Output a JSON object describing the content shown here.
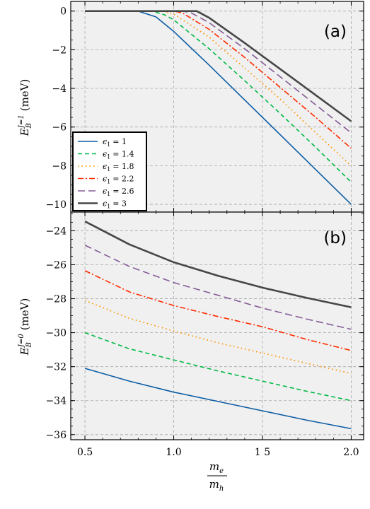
{
  "chart_data": [
    {
      "type": "line",
      "panel_label": "(a)",
      "ylabel": "E_B^{J=1} (meV)",
      "ylabel_parts": {
        "base": "E",
        "sub": "B",
        "sup": "J=1",
        "unit": "(meV)"
      },
      "xlim": [
        0.42,
        2.07
      ],
      "ylim": [
        -10.4,
        0.5
      ],
      "yticks": [
        0,
        -2,
        -4,
        -6,
        -8,
        -10
      ],
      "ytick_labels": [
        "0",
        "−2",
        "−4",
        "−6",
        "−8",
        "−10"
      ],
      "grid": true,
      "legend_position": "lower-left",
      "series": [
        {
          "name": "ϵ1 = 1",
          "color": "#0c5da5",
          "dash": "solid",
          "width": 1.6,
          "x": [
            0.5,
            0.8,
            0.9,
            1.0,
            1.2,
            1.4,
            1.6,
            1.8,
            2.0
          ],
          "y": [
            0,
            0,
            -0.3,
            -1.05,
            -2.8,
            -4.6,
            -6.4,
            -8.2,
            -10.0
          ]
        },
        {
          "name": "ϵ1 = 1.4",
          "color": "#00b945",
          "dash": "6,4",
          "width": 1.6,
          "x": [
            0.5,
            0.88,
            0.95,
            1.0,
            1.2,
            1.4,
            1.6,
            1.8,
            2.0
          ],
          "y": [
            0,
            0,
            -0.2,
            -0.45,
            -1.95,
            -3.6,
            -5.3,
            -7.05,
            -8.85
          ]
        },
        {
          "name": "ϵ1 = 1.8",
          "color": "#ff9500",
          "dash": "1.5,4",
          "width": 1.8,
          "x": [
            0.5,
            0.94,
            1.0,
            1.2,
            1.4,
            1.6,
            1.8,
            2.0
          ],
          "y": [
            0,
            0,
            -0.15,
            -1.35,
            -2.95,
            -4.55,
            -6.3,
            -8.0
          ]
        },
        {
          "name": "ϵ1 = 2.2",
          "color": "#ff2c00",
          "dash": "8,3,2,3",
          "width": 1.6,
          "x": [
            0.5,
            1.0,
            1.05,
            1.2,
            1.4,
            1.6,
            1.8,
            2.0
          ],
          "y": [
            0,
            0,
            -0.1,
            -0.95,
            -2.4,
            -3.95,
            -5.5,
            -7.1
          ]
        },
        {
          "name": "ϵ1 = 2.6",
          "color": "#845b97",
          "dash": "10,5",
          "width": 1.6,
          "x": [
            0.5,
            1.05,
            1.1,
            1.2,
            1.4,
            1.6,
            1.8,
            2.0
          ],
          "y": [
            0,
            0,
            -0.1,
            -0.6,
            -1.95,
            -3.4,
            -4.85,
            -6.3
          ]
        },
        {
          "name": "ϵ1 = 3",
          "color": "#474747",
          "dash": "solid",
          "width": 2.6,
          "x": [
            0.5,
            1.13,
            1.2,
            1.4,
            1.6,
            1.8,
            2.0
          ],
          "y": [
            0,
            0,
            -0.35,
            -1.65,
            -3.0,
            -4.35,
            -5.7
          ]
        }
      ]
    },
    {
      "type": "line",
      "panel_label": "(b)",
      "ylabel": "E_B^{J=0} (meV)",
      "ylabel_parts": {
        "base": "E",
        "sub": "B",
        "sup": "J=0",
        "unit": "(meV)"
      },
      "xlabel": "m_e / m_h",
      "xlabel_parts": {
        "num": "m",
        "num_sub": "e",
        "den": "m",
        "den_sub": "h"
      },
      "xlim": [
        0.42,
        2.07
      ],
      "ylim": [
        -36.3,
        -22.9
      ],
      "yticks": [
        -24,
        -26,
        -28,
        -30,
        -32,
        -34,
        -36
      ],
      "ytick_labels": [
        "−24",
        "−26",
        "−28",
        "−30",
        "−32",
        "−34",
        "−36"
      ],
      "xticks": [
        0.5,
        1.0,
        1.5,
        2.0
      ],
      "xtick_labels": [
        "0.5",
        "1.0",
        "1 5",
        "2.0"
      ],
      "grid": true,
      "series": [
        {
          "name": "ϵ1 = 1",
          "color": "#0c5da5",
          "dash": "solid",
          "width": 1.6,
          "x": [
            0.5,
            0.75,
            1.0,
            1.25,
            1.5,
            1.75,
            2.0
          ],
          "y": [
            -32.1,
            -32.85,
            -33.5,
            -34.05,
            -34.6,
            -35.15,
            -35.65
          ]
        },
        {
          "name": "ϵ1 = 1.4",
          "color": "#00b945",
          "dash": "6,4",
          "width": 1.6,
          "x": [
            0.5,
            0.75,
            1.0,
            1.25,
            1.5,
            1.75,
            2.0
          ],
          "y": [
            -30.0,
            -30.95,
            -31.6,
            -32.25,
            -32.85,
            -33.45,
            -34.0
          ]
        },
        {
          "name": "ϵ1 = 1.8",
          "color": "#ff9500",
          "dash": "1.5,4",
          "width": 1.8,
          "x": [
            0.5,
            0.75,
            1.0,
            1.25,
            1.5,
            1.75,
            2.0
          ],
          "y": [
            -28.1,
            -29.15,
            -29.9,
            -30.6,
            -31.2,
            -31.8,
            -32.4
          ]
        },
        {
          "name": "ϵ1 = 2.2",
          "color": "#ff2c00",
          "dash": "8,3,2,3",
          "width": 1.6,
          "x": [
            0.5,
            0.75,
            1.0,
            1.25,
            1.5,
            1.75,
            2.0
          ],
          "y": [
            -26.35,
            -27.6,
            -28.4,
            -29.05,
            -29.65,
            -30.4,
            -31.05
          ]
        },
        {
          "name": "ϵ1 = 2.6",
          "color": "#845b97",
          "dash": "10,5",
          "width": 1.6,
          "x": [
            0.5,
            0.75,
            1.0,
            1.25,
            1.5,
            1.75,
            2.0
          ],
          "y": [
            -24.85,
            -26.1,
            -27.05,
            -27.8,
            -28.55,
            -29.2,
            -29.8
          ]
        },
        {
          "name": "ϵ1 = 3",
          "color": "#474747",
          "dash": "solid",
          "width": 2.6,
          "x": [
            0.5,
            0.75,
            1.0,
            1.25,
            1.5,
            1.75,
            2.0
          ],
          "y": [
            -23.45,
            -24.8,
            -25.85,
            -26.65,
            -27.35,
            -27.95,
            -28.5
          ]
        }
      ]
    }
  ],
  "legend": {
    "entries": [
      {
        "label": "ϵ1 = 1",
        "base": "ϵ",
        "sub": "1",
        "value": "= 1"
      },
      {
        "label": "ϵ1 = 1.4",
        "base": "ϵ",
        "sub": "1",
        "value": "= 1.4"
      },
      {
        "label": "ϵ1 = 1.8",
        "base": "ϵ",
        "sub": "1",
        "value": "= 1.8"
      },
      {
        "label": "ϵ1 = 2.2",
        "base": "ϵ",
        "sub": "1",
        "value": "= 2.2"
      },
      {
        "label": "ϵ1 = 2.6",
        "base": "ϵ",
        "sub": "1",
        "value": "= 2.6"
      },
      {
        "label": "ϵ1 = 3",
        "base": "ϵ",
        "sub": "1",
        "value": "= 3"
      }
    ]
  },
  "colors": {
    "panel_background": "#f0f0f0",
    "grid": "#a8a8a8",
    "axis": "#000000"
  }
}
